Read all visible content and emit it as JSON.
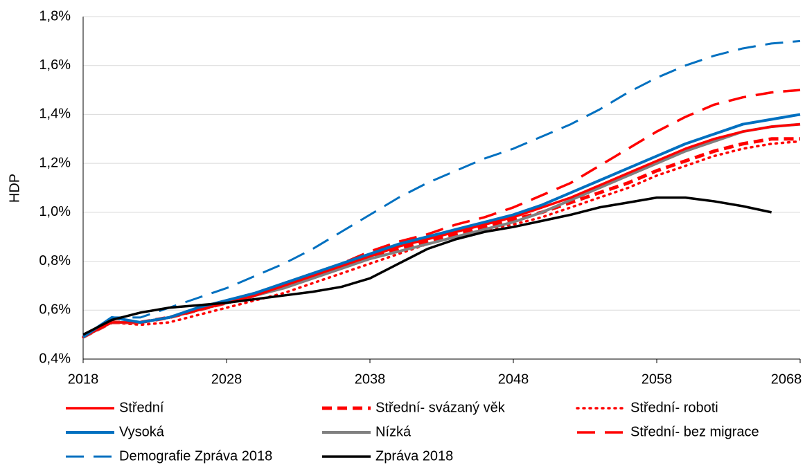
{
  "chart_data": {
    "type": "line",
    "y_label": "HDP",
    "x": [
      2018,
      2020,
      2022,
      2024,
      2026,
      2028,
      2030,
      2032,
      2034,
      2036,
      2038,
      2040,
      2042,
      2044,
      2046,
      2048,
      2050,
      2052,
      2054,
      2056,
      2058,
      2060,
      2062,
      2064,
      2066,
      2068
    ],
    "xlim": [
      2018,
      2068
    ],
    "xticks": [
      2018,
      2028,
      2038,
      2048,
      2058,
      2068
    ],
    "ylim": [
      0.4,
      1.8
    ],
    "yticks": [
      {
        "value": 0.4,
        "label": "0,4%"
      },
      {
        "value": 0.6,
        "label": "0,6%"
      },
      {
        "value": 0.8,
        "label": "0,8%"
      },
      {
        "value": 1.0,
        "label": "1,0%"
      },
      {
        "value": 1.2,
        "label": "1,2%"
      },
      {
        "value": 1.4,
        "label": "1,4%"
      },
      {
        "value": 1.6,
        "label": "1,6%"
      },
      {
        "value": 1.8,
        "label": "1,8%"
      }
    ],
    "grid": true,
    "legend": "bottom",
    "series": [
      {
        "name": "Střední",
        "color": "#ff0000",
        "dash": "solid",
        "width": 3.5,
        "values": [
          0.49,
          0.55,
          0.55,
          0.57,
          0.6,
          0.63,
          0.66,
          0.7,
          0.74,
          0.78,
          0.82,
          0.86,
          0.89,
          0.92,
          0.95,
          0.98,
          1.02,
          1.06,
          1.11,
          1.16,
          1.21,
          1.26,
          1.3,
          1.33,
          1.35,
          1.36
        ]
      },
      {
        "name": "Střední- svázaný věk",
        "color": "#ff0000",
        "dash": "dash",
        "width": 5,
        "values": [
          0.49,
          0.55,
          0.55,
          0.57,
          0.6,
          0.63,
          0.66,
          0.7,
          0.74,
          0.78,
          0.82,
          0.85,
          0.88,
          0.91,
          0.94,
          0.97,
          1.0,
          1.04,
          1.08,
          1.12,
          1.17,
          1.21,
          1.25,
          1.28,
          1.3,
          1.3
        ]
      },
      {
        "name": "Střední- roboti",
        "color": "#ff0000",
        "dash": "dot",
        "width": 3.5,
        "values": [
          0.49,
          0.55,
          0.54,
          0.55,
          0.58,
          0.61,
          0.64,
          0.67,
          0.71,
          0.75,
          0.79,
          0.83,
          0.87,
          0.9,
          0.93,
          0.95,
          0.98,
          1.02,
          1.06,
          1.1,
          1.15,
          1.19,
          1.23,
          1.26,
          1.28,
          1.29
        ]
      },
      {
        "name": "Vysoká",
        "color": "#0070c0",
        "dash": "solid",
        "width": 4,
        "values": [
          0.49,
          0.57,
          0.55,
          0.57,
          0.61,
          0.64,
          0.67,
          0.71,
          0.75,
          0.79,
          0.83,
          0.87,
          0.9,
          0.93,
          0.96,
          0.99,
          1.03,
          1.08,
          1.13,
          1.18,
          1.23,
          1.28,
          1.32,
          1.36,
          1.38,
          1.4
        ]
      },
      {
        "name": "Nízká",
        "color": "#808080",
        "dash": "solid",
        "width": 4,
        "values": [
          0.49,
          0.55,
          0.55,
          0.57,
          0.6,
          0.63,
          0.66,
          0.69,
          0.73,
          0.77,
          0.81,
          0.84,
          0.87,
          0.9,
          0.93,
          0.96,
          1.0,
          1.05,
          1.1,
          1.15,
          1.2,
          1.25,
          1.29,
          1.33,
          1.35,
          1.36
        ]
      },
      {
        "name": "Střední- bez migrace",
        "color": "#ff0000",
        "dash": "longdash",
        "width": 3.5,
        "values": [
          0.49,
          0.55,
          0.55,
          0.57,
          0.61,
          0.64,
          0.67,
          0.71,
          0.75,
          0.79,
          0.84,
          0.88,
          0.91,
          0.95,
          0.98,
          1.02,
          1.07,
          1.12,
          1.19,
          1.26,
          1.33,
          1.39,
          1.44,
          1.47,
          1.49,
          1.5
        ]
      },
      {
        "name": "Demografie Zpráva 2018",
        "color": "#0070c0",
        "dash": "longdash",
        "width": 3,
        "values": [
          0.49,
          0.57,
          0.57,
          0.61,
          0.65,
          0.69,
          0.74,
          0.79,
          0.85,
          0.92,
          0.99,
          1.06,
          1.12,
          1.17,
          1.22,
          1.26,
          1.31,
          1.36,
          1.42,
          1.49,
          1.55,
          1.6,
          1.64,
          1.67,
          1.69,
          1.7
        ]
      },
      {
        "name": "Zpráva 2018",
        "color": "#000000",
        "dash": "solid",
        "width": 3.5,
        "values": [
          0.5,
          0.56,
          0.59,
          0.61,
          0.62,
          0.63,
          0.645,
          0.66,
          0.675,
          0.695,
          0.73,
          0.79,
          0.85,
          0.89,
          0.92,
          0.94,
          0.965,
          0.99,
          1.02,
          1.04,
          1.06,
          1.06,
          1.045,
          1.025,
          1.0,
          null
        ]
      }
    ]
  }
}
